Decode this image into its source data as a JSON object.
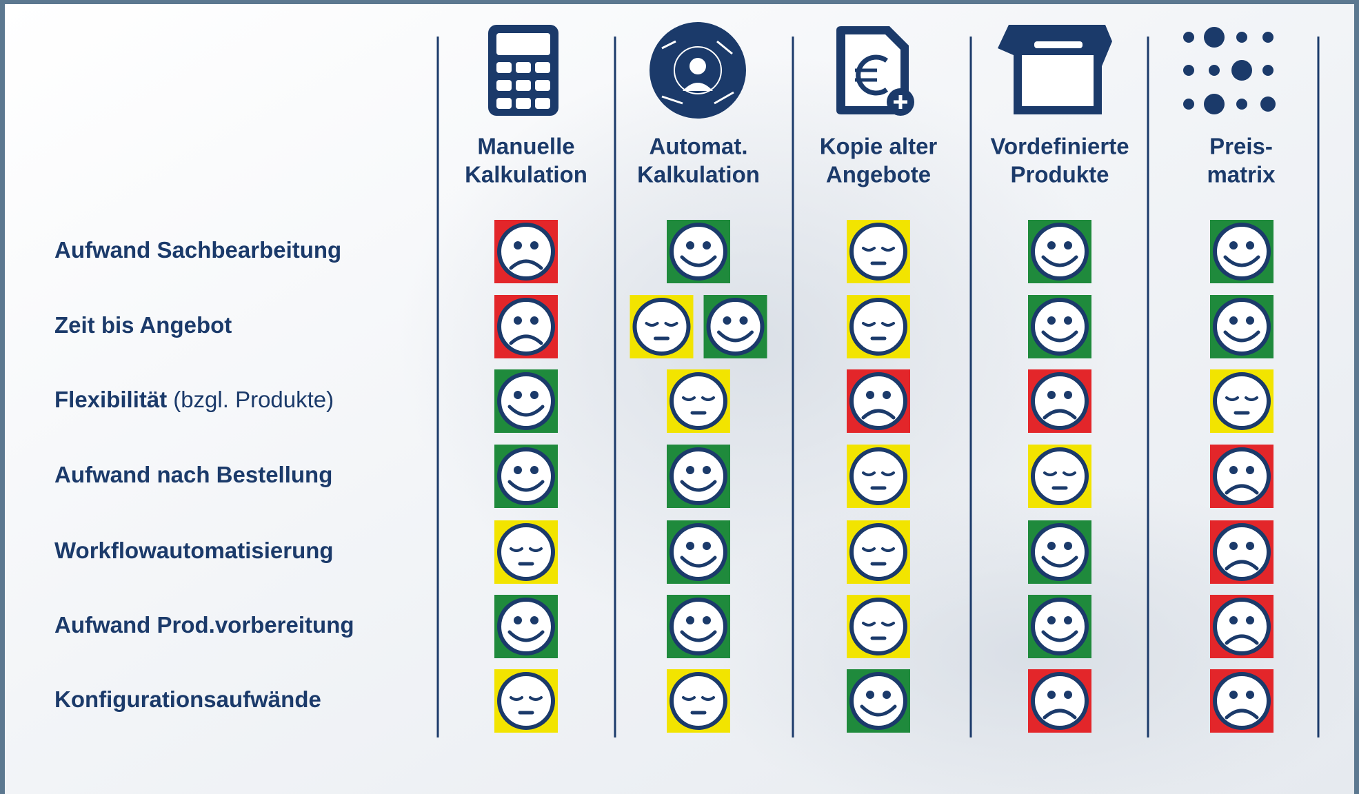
{
  "colors": {
    "good": "#1f8a3c",
    "neutral": "#f2e400",
    "bad": "#e3262a"
  },
  "columns": [
    {
      "lines": [
        "Manuelle",
        "Kalkulation"
      ]
    },
    {
      "lines": [
        "Automat.",
        "Kalkulation"
      ]
    },
    {
      "lines": [
        "Kopie alter",
        "Angebote"
      ]
    },
    {
      "lines": [
        "Vordefinierte",
        "Produkte"
      ]
    },
    {
      "lines": [
        "Preis-",
        "matrix"
      ]
    }
  ],
  "rows": [
    {
      "label": "Aufwand Sachbearbeitung",
      "cells": [
        [
          "bad"
        ],
        [
          "good"
        ],
        [
          "neutral"
        ],
        [
          "good"
        ],
        [
          "good"
        ]
      ]
    },
    {
      "label": "Zeit bis Angebot",
      "cells": [
        [
          "bad"
        ],
        [
          "neutral",
          "good"
        ],
        [
          "neutral"
        ],
        [
          "good"
        ],
        [
          "good"
        ]
      ]
    },
    {
      "label": "Flexibilität",
      "note": "(bzgl. Produkte)",
      "cells": [
        [
          "good"
        ],
        [
          "neutral"
        ],
        [
          "bad"
        ],
        [
          "bad"
        ],
        [
          "neutral"
        ]
      ]
    },
    {
      "label": "Aufwand nach Bestellung",
      "cells": [
        [
          "good"
        ],
        [
          "good"
        ],
        [
          "neutral"
        ],
        [
          "neutral"
        ],
        [
          "bad"
        ]
      ]
    },
    {
      "label": "Workflowautomatisierung",
      "cells": [
        [
          "neutral"
        ],
        [
          "good"
        ],
        [
          "neutral"
        ],
        [
          "good"
        ],
        [
          "bad"
        ]
      ]
    },
    {
      "label": "Aufwand Prod.vorbereitung",
      "cells": [
        [
          "good"
        ],
        [
          "good"
        ],
        [
          "neutral"
        ],
        [
          "good"
        ],
        [
          "bad"
        ]
      ]
    },
    {
      "label": "Konfigurationsaufwände",
      "cells": [
        [
          "neutral"
        ],
        [
          "neutral"
        ],
        [
          "good"
        ],
        [
          "bad"
        ],
        [
          "bad"
        ]
      ]
    }
  ]
}
